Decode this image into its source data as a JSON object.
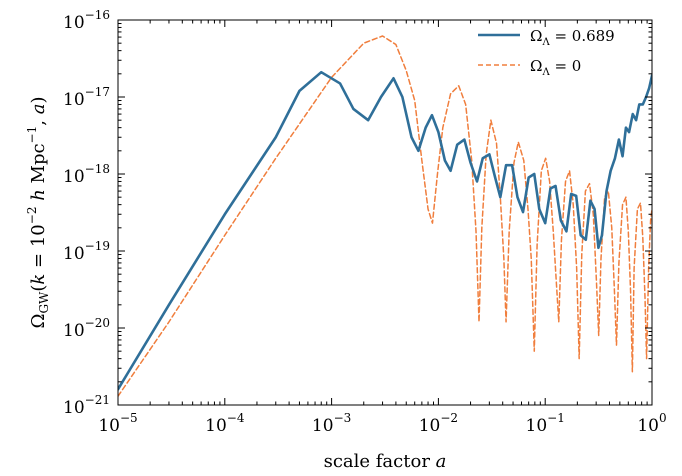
{
  "chart_data": {
    "type": "line",
    "xlabel": "scale factor a",
    "ylabel": "Ω_GW(k = 10^−2 h Mpc^−1, a)",
    "x_scale": "log",
    "y_scale": "log",
    "xlim": [
      1e-05,
      1
    ],
    "ylim": [
      1e-21,
      1e-16
    ],
    "grid": false,
    "legend_position": "top-right",
    "x_ticks": [
      {
        "base": "10",
        "exp": "−5"
      },
      {
        "base": "10",
        "exp": "−4"
      },
      {
        "base": "10",
        "exp": "−3"
      },
      {
        "base": "10",
        "exp": "−2"
      },
      {
        "base": "10",
        "exp": "−1"
      },
      {
        "base": "10",
        "exp": "0"
      }
    ],
    "y_ticks": [
      {
        "base": "10",
        "exp": "−21"
      },
      {
        "base": "10",
        "exp": "−20"
      },
      {
        "base": "10",
        "exp": "−19"
      },
      {
        "base": "10",
        "exp": "−18"
      },
      {
        "base": "10",
        "exp": "−17"
      },
      {
        "base": "10",
        "exp": "−16"
      }
    ],
    "series": [
      {
        "name": "Ω_Λ = 0.689",
        "legend_symbol": "Ω",
        "legend_sub": "Λ",
        "legend_rest": " = 0.689",
        "color": "#2f6f99",
        "dash": "solid",
        "points": [
          [
            1e-05,
            1.6e-21
          ],
          [
            3e-05,
            2e-20
          ],
          [
            0.0001,
            3e-19
          ],
          [
            0.0003,
            3e-18
          ],
          [
            0.0005,
            1.2e-17
          ],
          [
            0.0008,
            2.1e-17
          ],
          [
            0.0012,
            1.5e-17
          ],
          [
            0.0016,
            7e-18
          ],
          [
            0.0022,
            5e-18
          ],
          [
            0.0029,
            1e-17
          ],
          [
            0.0038,
            1.75e-17
          ],
          [
            0.0046,
            1e-17
          ],
          [
            0.0056,
            3e-18
          ],
          [
            0.0065,
            2e-18
          ],
          [
            0.0076,
            4e-18
          ],
          [
            0.0087,
            5.8e-18
          ],
          [
            0.01,
            3.5e-18
          ],
          [
            0.0115,
            1.5e-18
          ],
          [
            0.013,
            1.1e-18
          ],
          [
            0.015,
            2.4e-18
          ],
          [
            0.0175,
            2.8e-18
          ],
          [
            0.02,
            1.4e-18
          ],
          [
            0.023,
            8e-19
          ],
          [
            0.026,
            1.6e-18
          ],
          [
            0.03,
            1.8e-18
          ],
          [
            0.034,
            9e-19
          ],
          [
            0.038,
            5e-19
          ],
          [
            0.043,
            1.3e-18
          ],
          [
            0.049,
            1.3e-18
          ],
          [
            0.055,
            5e-19
          ],
          [
            0.062,
            3.2e-19
          ],
          [
            0.07,
            9e-19
          ],
          [
            0.079,
            1e-18
          ],
          [
            0.088,
            3.5e-19
          ],
          [
            0.1,
            2.3e-19
          ],
          [
            0.112,
            6.5e-19
          ],
          [
            0.125,
            7e-19
          ],
          [
            0.14,
            2.5e-19
          ],
          [
            0.158,
            1.8e-19
          ],
          [
            0.175,
            5.5e-19
          ],
          [
            0.195,
            5.2e-19
          ],
          [
            0.215,
            1.6e-19
          ],
          [
            0.24,
            1.4e-19
          ],
          [
            0.265,
            4.5e-19
          ],
          [
            0.29,
            3.5e-19
          ],
          [
            0.315,
            1.1e-19
          ],
          [
            0.34,
            1.6e-19
          ],
          [
            0.375,
            6e-19
          ],
          [
            0.41,
            1.1e-18
          ],
          [
            0.45,
            1.6e-18
          ],
          [
            0.49,
            2.8e-18
          ],
          [
            0.53,
            1.7e-18
          ],
          [
            0.57,
            4e-18
          ],
          [
            0.61,
            3.5e-18
          ],
          [
            0.66,
            6e-18
          ],
          [
            0.71,
            5e-18
          ],
          [
            0.76,
            8e-18
          ],
          [
            0.82,
            8e-18
          ],
          [
            0.88,
            1e-17
          ],
          [
            0.94,
            1.3e-17
          ],
          [
            1.0,
            1.9e-17
          ]
        ]
      },
      {
        "name": "Ω_Λ = 0",
        "legend_symbol": "Ω",
        "legend_sub": "Λ",
        "legend_rest": " = 0",
        "color": "#f07e3d",
        "dash": "dashed",
        "points": [
          [
            1e-05,
            1.3e-21
          ],
          [
            3e-05,
            1.2e-20
          ],
          [
            0.0001,
            1.6e-19
          ],
          [
            0.0003,
            1.6e-18
          ],
          [
            0.001,
            1.8e-17
          ],
          [
            0.002,
            5e-17
          ],
          [
            0.003,
            6.2e-17
          ],
          [
            0.004,
            4.8e-17
          ],
          [
            0.005,
            2.2e-17
          ],
          [
            0.006,
            9e-18
          ],
          [
            0.007,
            1.5e-18
          ],
          [
            0.008,
            3.5e-19
          ],
          [
            0.0088,
            2.3e-19
          ],
          [
            0.0098,
            1e-18
          ],
          [
            0.011,
            4e-18
          ],
          [
            0.013,
            1.1e-17
          ],
          [
            0.0155,
            1.4e-17
          ],
          [
            0.018,
            8e-18
          ],
          [
            0.0205,
            1.5e-18
          ],
          [
            0.0225,
            1.8e-19
          ],
          [
            0.024,
            1.2e-20
          ],
          [
            0.0255,
            2e-19
          ],
          [
            0.028,
            1.8e-18
          ],
          [
            0.031,
            5e-18
          ],
          [
            0.035,
            2.5e-18
          ],
          [
            0.038,
            5e-19
          ],
          [
            0.041,
            8e-20
          ],
          [
            0.043,
            1.2e-20
          ],
          [
            0.046,
            1.8e-19
          ],
          [
            0.051,
            1.4e-18
          ],
          [
            0.056,
            2.6e-18
          ],
          [
            0.063,
            1.5e-18
          ],
          [
            0.069,
            3.5e-19
          ],
          [
            0.074,
            8e-20
          ],
          [
            0.079,
            5e-21
          ],
          [
            0.084,
            1.2e-19
          ],
          [
            0.092,
            1.1e-18
          ],
          [
            0.101,
            1.6e-18
          ],
          [
            0.11,
            8e-19
          ],
          [
            0.119,
            1.8e-19
          ],
          [
            0.127,
            4e-20
          ],
          [
            0.134,
            1.2e-20
          ],
          [
            0.142,
            1.4e-19
          ],
          [
            0.155,
            8e-19
          ],
          [
            0.169,
            1.1e-18
          ],
          [
            0.183,
            4e-19
          ],
          [
            0.197,
            6e-20
          ],
          [
            0.208,
            4e-21
          ],
          [
            0.22,
            9e-20
          ],
          [
            0.238,
            6e-19
          ],
          [
            0.26,
            7.5e-19
          ],
          [
            0.282,
            3e-19
          ],
          [
            0.302,
            4e-20
          ],
          [
            0.317,
            8e-21
          ],
          [
            0.333,
            8e-20
          ],
          [
            0.36,
            5e-19
          ],
          [
            0.39,
            6e-19
          ],
          [
            0.42,
            2e-19
          ],
          [
            0.445,
            3e-20
          ],
          [
            0.465,
            6e-21
          ],
          [
            0.49,
            7e-20
          ],
          [
            0.53,
            4e-19
          ],
          [
            0.57,
            5e-19
          ],
          [
            0.6,
            1.8e-19
          ],
          [
            0.63,
            3e-20
          ],
          [
            0.655,
            2.7e-21
          ],
          [
            0.68,
            6e-20
          ],
          [
            0.73,
            3.5e-19
          ],
          [
            0.78,
            4.2e-19
          ],
          [
            0.82,
            1.5e-19
          ],
          [
            0.86,
            2.5e-20
          ],
          [
            0.89,
            4e-21
          ],
          [
            0.93,
            6e-20
          ],
          [
            0.97,
            2.5e-19
          ],
          [
            1.0,
            3.5e-19
          ]
        ]
      }
    ]
  }
}
